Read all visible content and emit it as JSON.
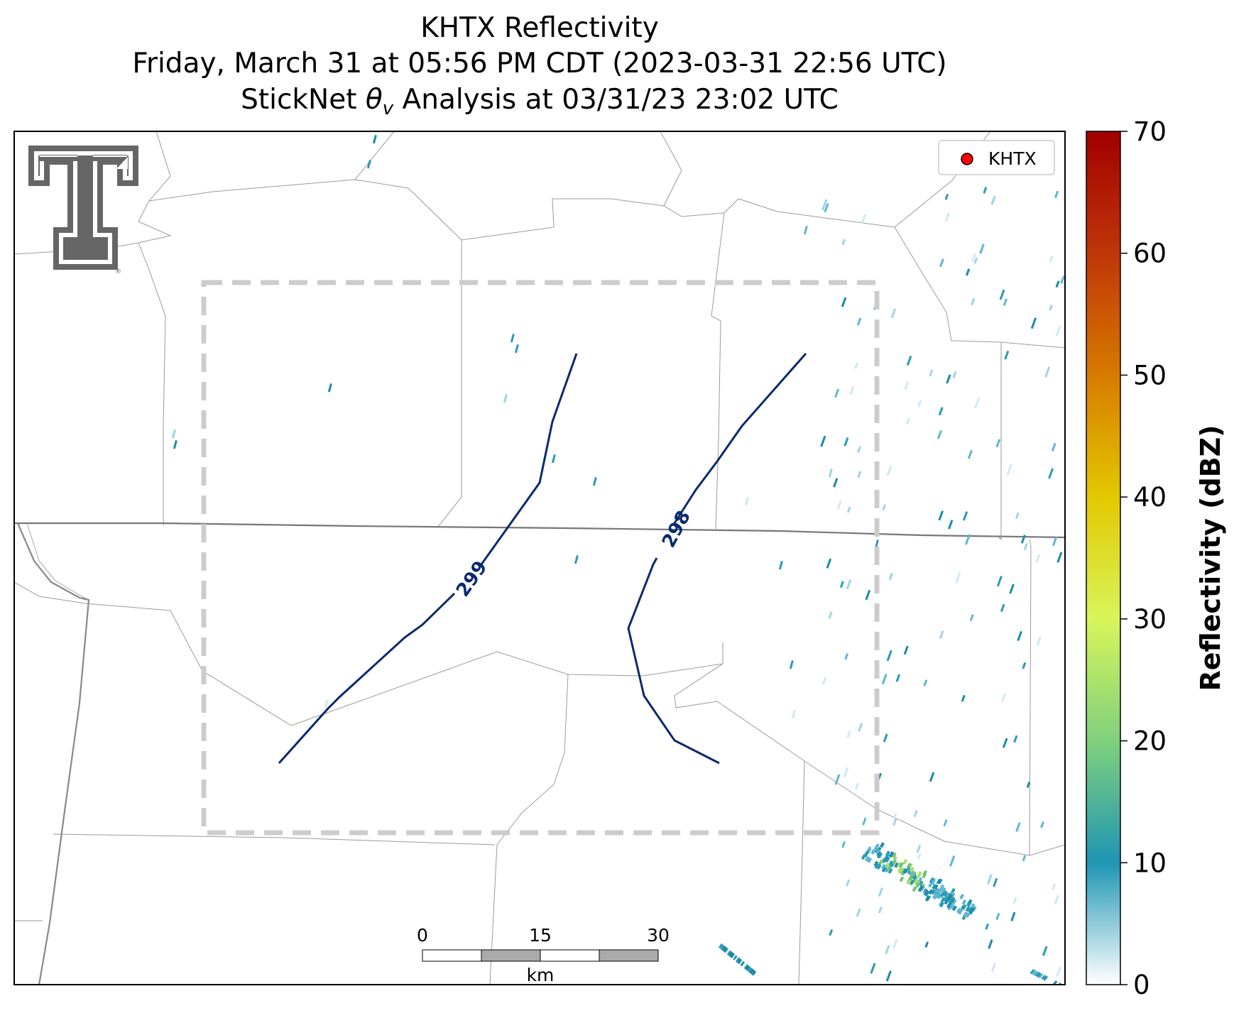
{
  "title": {
    "line1": "KHTX Reflectivity",
    "line2": "Friday, March 31 at 05:56 PM CDT (2023-03-31 22:56 UTC)",
    "line3_prefix": "StickNet ",
    "line3_theta": "θ",
    "line3_sub": "v",
    "line3_suffix": " Analysis at 03/31/23 23:02 UTC"
  },
  "legend": {
    "label": "KHTX",
    "marker_color": "#ff0000"
  },
  "contours": [
    {
      "label": "299",
      "color": "#0a2a6e"
    },
    {
      "label": "298",
      "color": "#0a2a6e"
    }
  ],
  "scalebar": {
    "ticks": [
      "0",
      "15",
      "30"
    ],
    "unit": "km"
  },
  "colorbar": {
    "label": "Reflectivity (dBZ)",
    "min": 0,
    "max": 70,
    "ticks": [
      0,
      10,
      20,
      30,
      40,
      50,
      60,
      70
    ],
    "stops": [
      "#ffffff",
      "#1f95b4",
      "#7fd07c",
      "#d7f55a",
      "#e3c800",
      "#d77a00",
      "#c0360a",
      "#a00000"
    ]
  },
  "logo": {
    "name": "Texas Tech Double T",
    "color": "#666666"
  },
  "analysis_box": {
    "color": "#cccccc",
    "style": "dashed"
  }
}
